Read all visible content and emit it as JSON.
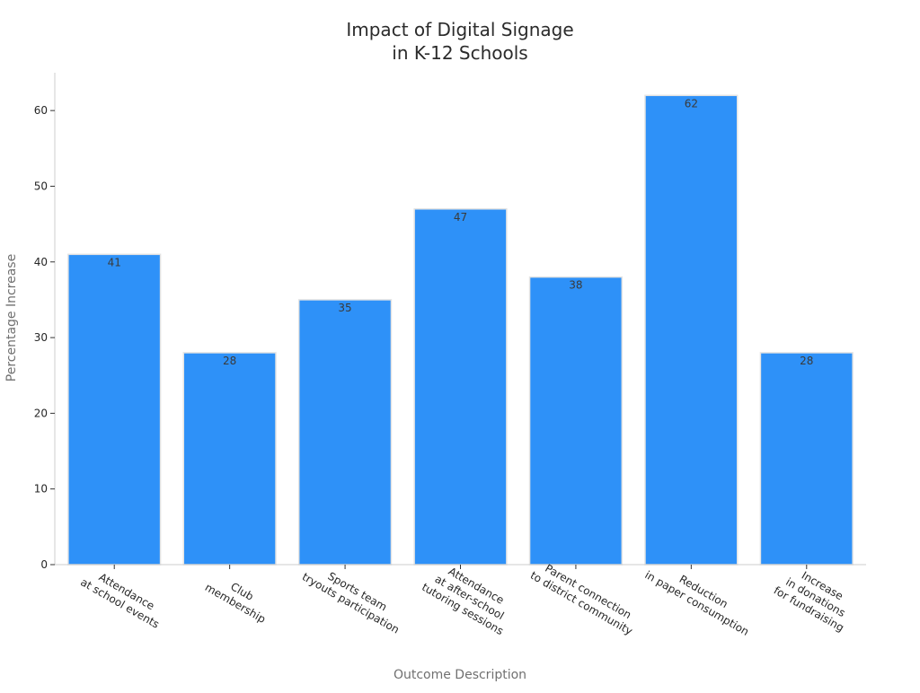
{
  "chart_data": {
    "type": "bar",
    "title": "Impact of Digital Signage\nin K-12 Schools",
    "xlabel": "Outcome Description",
    "ylabel": "Percentage Increase",
    "categories": [
      "Attendance\nat school events",
      "Club\nmembership",
      "Sports team\ntryouts participation",
      "Attendance\nat after-school\ntutoring sessions",
      "Parent connection\nto district community",
      "Reduction\nin paper consumption",
      "Increase\nin donations\nfor fundraising"
    ],
    "values": [
      41,
      28,
      35,
      47,
      38,
      62,
      28
    ],
    "yticks": [
      0,
      10,
      20,
      30,
      40,
      50,
      60
    ],
    "ylim": [
      0,
      65
    ],
    "grid": false,
    "legend": "none",
    "bar_color": "#2e91f8",
    "bar_edge_color": "#e3e3e3"
  }
}
